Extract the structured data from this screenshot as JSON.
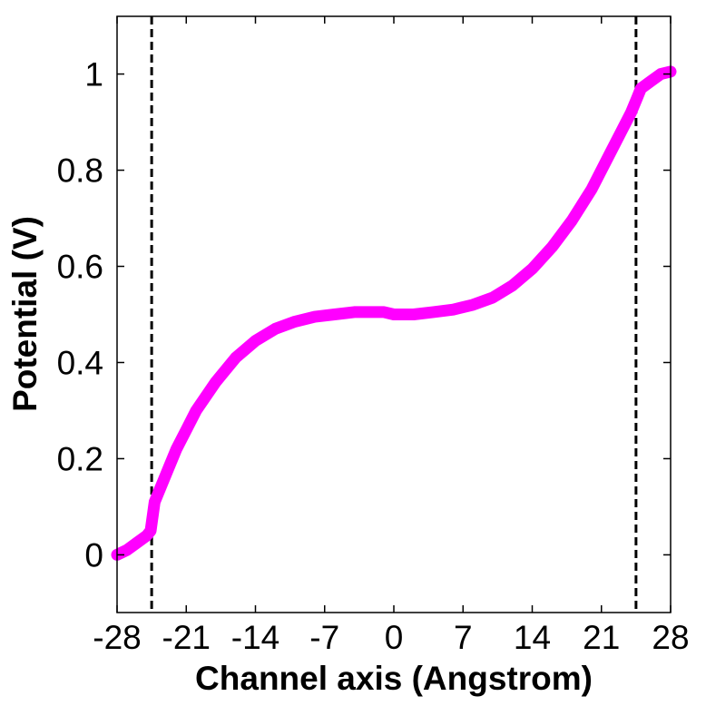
{
  "chart_data": {
    "type": "line",
    "title": "",
    "xlabel": "Channel axis (Angstrom)",
    "ylabel": "Potential (V)",
    "xlim": [
      -28,
      28
    ],
    "ylim": [
      -0.12,
      1.12
    ],
    "x_ticks": [
      -28,
      -21,
      -14,
      -7,
      0,
      7,
      14,
      21,
      28
    ],
    "x_tick_labels": [
      "-28",
      "-21",
      "-14",
      "-7",
      "0",
      "7",
      "14",
      "21",
      "28"
    ],
    "y_ticks": [
      0,
      0.2,
      0.4,
      0.6,
      0.8,
      1
    ],
    "y_tick_labels": [
      "0",
      "0.2",
      "0.4",
      "0.6",
      "0.8",
      "1"
    ],
    "grid": false,
    "legend": "none",
    "series": [
      {
        "color": "#ff00ff",
        "x": [
          -28,
          -27,
          -26,
          -25,
          -24.6,
          -24.2,
          -23,
          -22,
          -21,
          -20,
          -18,
          -16,
          -14,
          -12,
          -10,
          -8,
          -6,
          -4,
          -2,
          -1,
          0,
          1,
          2,
          4,
          6,
          8,
          10,
          12,
          14,
          16,
          18,
          20,
          22,
          23,
          24,
          24.6,
          25,
          26,
          27,
          28
        ],
        "y": [
          0,
          0.01,
          0.025,
          0.04,
          0.05,
          0.11,
          0.17,
          0.22,
          0.26,
          0.3,
          0.36,
          0.41,
          0.445,
          0.47,
          0.485,
          0.495,
          0.5,
          0.505,
          0.505,
          0.505,
          0.5,
          0.5,
          0.5,
          0.505,
          0.51,
          0.52,
          0.535,
          0.56,
          0.595,
          0.64,
          0.695,
          0.76,
          0.84,
          0.88,
          0.92,
          0.95,
          0.97,
          0.985,
          1,
          1.005
        ]
      }
    ],
    "vertical_lines": [
      {
        "x": -24.5,
        "style": "dashed",
        "color": "#000000"
      },
      {
        "x": 24.5,
        "style": "dashed",
        "color": "#000000"
      }
    ]
  }
}
